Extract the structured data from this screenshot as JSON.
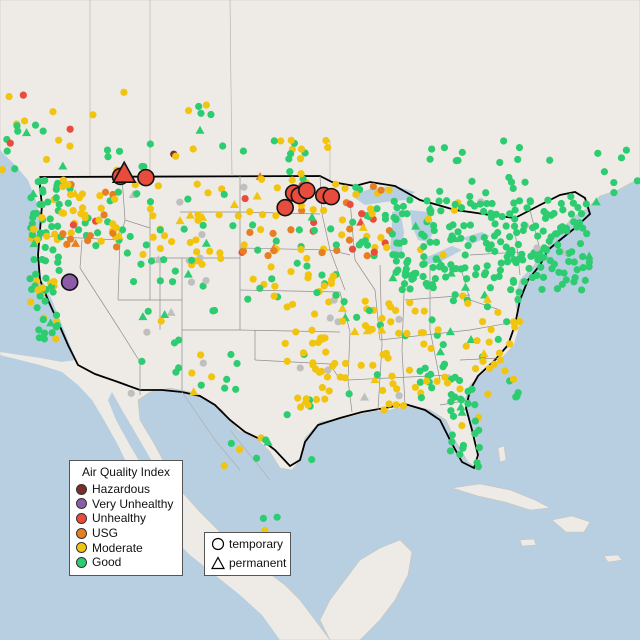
{
  "colors": {
    "Hazardous": "#7b2d26",
    "Very Unhealthy": "#8e5ba8",
    "Unhealthy": "#e74c3c",
    "USG": "#e67e22",
    "Moderate": "#f1c40f",
    "Good": "#2ecc71",
    "none": "#bfbfbf",
    "water": "#b7cfe0",
    "land": "#eeebe6"
  },
  "legend": {
    "title": "Air Quality Index",
    "items": [
      {
        "label": "Hazardous",
        "key": "Hazardous"
      },
      {
        "label": "Very Unhealthy",
        "key": "Very Unhealthy"
      },
      {
        "label": "Unhealthy",
        "key": "Unhealthy"
      },
      {
        "label": "USG",
        "key": "USG"
      },
      {
        "label": "Moderate",
        "key": "Moderate"
      },
      {
        "label": "Good",
        "key": "Good"
      }
    ]
  },
  "type_legend": {
    "temporary": "temporary",
    "permanent": "permanent"
  },
  "monitors_large": [
    {
      "category": "Unhealthy",
      "type": "temporary",
      "lon": -116.2,
      "lat": 48.6
    },
    {
      "category": "Unhealthy",
      "type": "permanent",
      "lon": -115.8,
      "lat": 48.8
    },
    {
      "category": "Unhealthy",
      "type": "temporary",
      "lon": -113.5,
      "lat": 48.6
    },
    {
      "category": "Unhealthy",
      "type": "temporary",
      "lon": -97.8,
      "lat": 47.6
    },
    {
      "category": "Unhealthy",
      "type": "temporary",
      "lon": -97.2,
      "lat": 47.4
    },
    {
      "category": "Unhealthy",
      "type": "temporary",
      "lon": -96.4,
      "lat": 47.8
    },
    {
      "category": "Unhealthy",
      "type": "temporary",
      "lon": -94.6,
      "lat": 47.4
    },
    {
      "category": "Unhealthy",
      "type": "temporary",
      "lon": -93.8,
      "lat": 47.3
    },
    {
      "category": "Unhealthy",
      "type": "temporary",
      "lon": -98.7,
      "lat": 46.4
    },
    {
      "category": "Very Unhealthy",
      "type": "temporary",
      "lon": -121.6,
      "lat": 39.7
    }
  ]
}
